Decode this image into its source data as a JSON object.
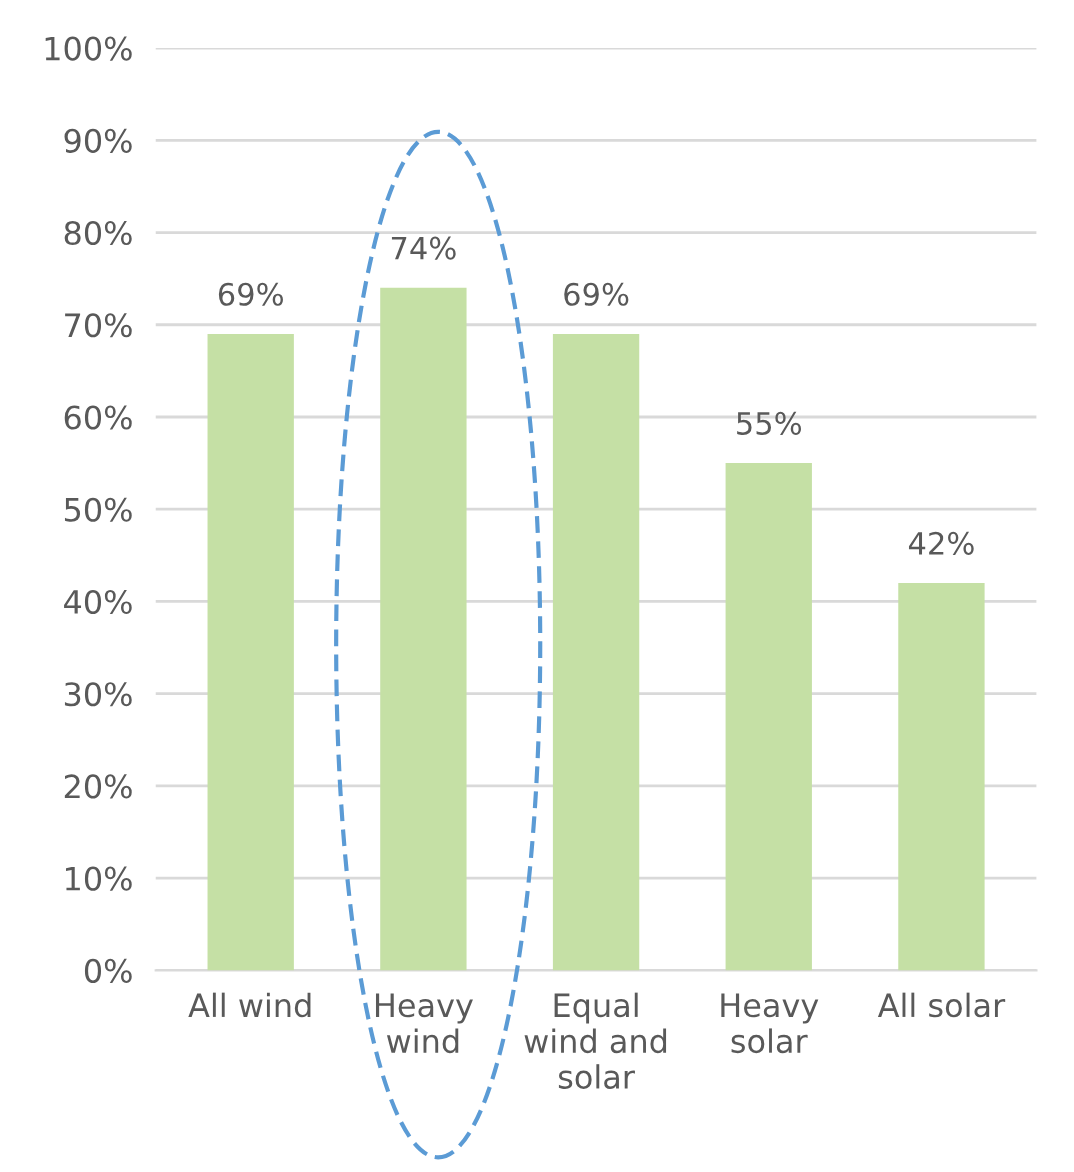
{
  "chart_data": {
    "type": "bar",
    "categories": [
      "All wind",
      "Heavy\nwind",
      "Equal\nwind and\nsolar",
      "Heavy\nsolar",
      "All solar"
    ],
    "values": [
      69,
      74,
      69,
      55,
      42
    ],
    "color": "#c5e0a5",
    "value_labels": [
      "69%",
      "74%",
      "69%",
      "55%",
      "42%"
    ],
    "ylim": [
      0,
      100
    ],
    "yticks": [
      {
        "value": 0,
        "label": "0%"
      },
      {
        "value": 10,
        "label": "10%"
      },
      {
        "value": 20,
        "label": "20%"
      },
      {
        "value": 30,
        "label": "30%"
      },
      {
        "value": 40,
        "label": "40%"
      },
      {
        "value": 50,
        "label": "50%"
      },
      {
        "value": 60,
        "label": "60%"
      },
      {
        "value": 70,
        "label": "70%"
      },
      {
        "value": 80,
        "label": "80%"
      },
      {
        "value": 90,
        "label": "90%"
      },
      {
        "value": 100,
        "label": "100%"
      }
    ],
    "grid": "y"
  }
}
